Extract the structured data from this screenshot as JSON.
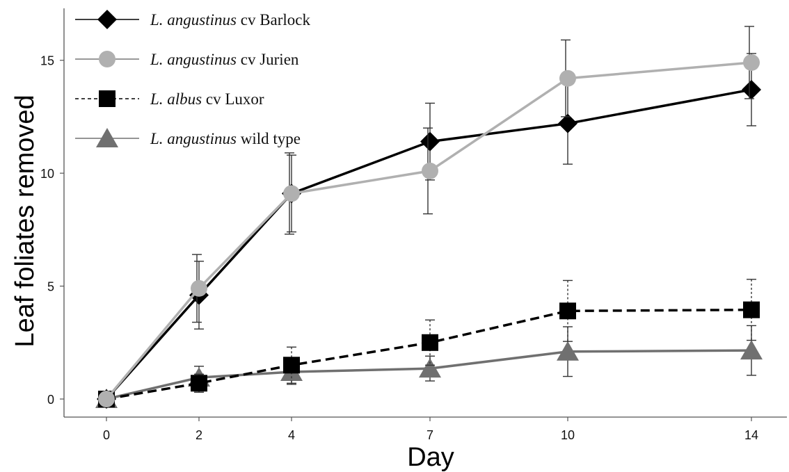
{
  "chart_data": {
    "type": "line",
    "xlabel": "Day",
    "ylabel": "Leaf foliates removed",
    "x": [
      0,
      2,
      4,
      7,
      10,
      14
    ],
    "xticks": [
      "0",
      "2",
      "4",
      "7",
      "10",
      "14"
    ],
    "yticks": [
      "0",
      "5",
      "10",
      "15"
    ],
    "ylim": [
      -0.8,
      17.3
    ],
    "grid": false,
    "legend_position": "top-left",
    "series": [
      {
        "name_italic": "L. angustinus",
        "name_rest": " cv Barlock",
        "marker": "diamond",
        "line": "solid",
        "color": "#000000",
        "values": [
          0,
          4.6,
          9.1,
          11.4,
          12.2,
          13.7
        ],
        "err": [
          0,
          1.5,
          1.7,
          1.7,
          1.8,
          1.6
        ]
      },
      {
        "name_italic": "L. angustinus",
        "name_rest": " cv Jurien",
        "marker": "circle",
        "line": "solid",
        "color": "#b0b0b0",
        "values": [
          0,
          4.9,
          9.1,
          10.1,
          14.2,
          14.9
        ],
        "err": [
          0,
          1.5,
          1.8,
          1.9,
          1.7,
          1.6
        ]
      },
      {
        "name_italic": "L. albus",
        "name_rest": " cv Luxor",
        "marker": "square",
        "line": "dashed",
        "color": "#000000",
        "values": [
          0,
          0.7,
          1.5,
          2.5,
          3.9,
          3.95
        ],
        "err": [
          0,
          0.4,
          0.8,
          1.0,
          1.35,
          1.35
        ]
      },
      {
        "name_italic": "L. angustinus",
        "name_rest": " wild type",
        "marker": "triangle",
        "line": "solid",
        "color": "#707070",
        "values": [
          0,
          0.95,
          1.2,
          1.35,
          2.1,
          2.15
        ],
        "err": [
          0,
          0.5,
          0.55,
          0.55,
          1.1,
          1.1
        ]
      }
    ]
  }
}
